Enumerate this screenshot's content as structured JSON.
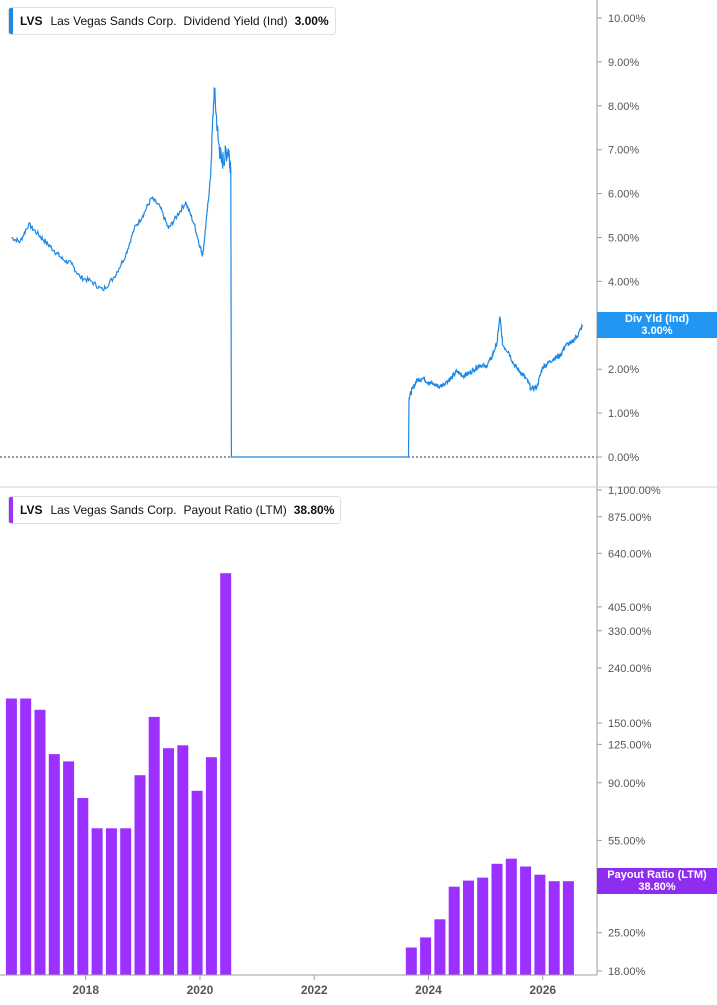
{
  "colors": {
    "yield_line": "#1e88e5",
    "payout_bar": "#9b30ff",
    "badge_yield": "#2196f3",
    "badge_payout": "#8e2cf0",
    "axis": "#9e9e9e"
  },
  "top_panel": {
    "ticker": "LVS",
    "company": "Las Vegas Sands Corp.",
    "metric": "Dividend Yield (Ind)",
    "value": "3.00%",
    "badge_line1": "Div Yld (Ind)",
    "badge_line2": "3.00%"
  },
  "bottom_panel": {
    "ticker": "LVS",
    "company": "Las Vegas Sands Corp.",
    "metric": "Payout Ratio (LTM)",
    "value": "38.80%",
    "badge_line1": "Payout Ratio (LTM)",
    "badge_line2": "38.80%"
  },
  "chart_data": [
    {
      "type": "line",
      "title": "LVS Las Vegas Sands Corp. Dividend Yield (Ind) 3.00%",
      "series_name": "Dividend Yield (Ind)",
      "unit": "%",
      "y_ticks": [
        "10.00%",
        "9.00%",
        "8.00%",
        "7.00%",
        "6.00%",
        "5.00%",
        "4.00%",
        "3.00%",
        "2.00%",
        "1.00%",
        "0.00%"
      ],
      "y_tick_values": [
        10,
        9,
        8,
        7,
        6,
        5,
        4,
        3,
        2,
        1,
        0
      ],
      "ylim": [
        0,
        10
      ],
      "zero_line": "dotted",
      "x": [
        2016.7,
        2016.85,
        2017.0,
        2017.15,
        2017.3,
        2017.45,
        2017.6,
        2017.75,
        2017.9,
        2018.1,
        2018.3,
        2018.5,
        2018.7,
        2018.85,
        2019.0,
        2019.15,
        2019.3,
        2019.45,
        2019.6,
        2019.75,
        2019.9,
        2020.0,
        2020.05,
        2020.12,
        2020.18,
        2020.25,
        2020.32,
        2020.38,
        2020.45,
        2020.5,
        2020.54,
        2020.55,
        2020.6,
        2021.0,
        2021.5,
        2022.0,
        2022.5,
        2023.0,
        2023.5,
        2023.65,
        2023.66,
        2023.72,
        2023.8,
        2023.9,
        2024.0,
        2024.1,
        2024.2,
        2024.3,
        2024.4,
        2024.5,
        2024.6,
        2024.7,
        2024.8,
        2024.9,
        2025.0,
        2025.1,
        2025.2,
        2025.25,
        2025.3,
        2025.4,
        2025.5,
        2025.6,
        2025.7,
        2025.8,
        2025.9,
        2026.0,
        2026.1,
        2026.2,
        2026.3,
        2026.4,
        2026.5,
        2026.6,
        2026.7
      ],
      "y": [
        5.0,
        4.9,
        5.3,
        5.1,
        4.9,
        4.7,
        4.5,
        4.4,
        4.1,
        4.0,
        3.8,
        4.1,
        4.6,
        5.2,
        5.5,
        5.9,
        5.7,
        5.2,
        5.5,
        5.8,
        5.3,
        4.8,
        4.6,
        5.5,
        6.3,
        8.4,
        7.2,
        6.7,
        6.9,
        7.0,
        6.6,
        0.0,
        0.0,
        0.0,
        0.0,
        0.0,
        0.0,
        0.0,
        0.0,
        0.0,
        1.35,
        1.55,
        1.75,
        1.8,
        1.7,
        1.65,
        1.6,
        1.7,
        1.8,
        1.95,
        1.85,
        1.9,
        2.0,
        2.1,
        2.05,
        2.25,
        2.6,
        3.2,
        2.55,
        2.4,
        2.1,
        1.95,
        1.8,
        1.55,
        1.6,
        2.05,
        2.15,
        2.25,
        2.3,
        2.55,
        2.6,
        2.75,
        3.0
      ],
      "last_value": "3.00%"
    },
    {
      "type": "bar",
      "title": "LVS Las Vegas Sands Corp. Payout Ratio (LTM) 38.80%",
      "series_name": "Payout Ratio (LTM)",
      "unit": "%",
      "y_scale": "log",
      "y_ticks": [
        "1,100.00%",
        "875.00%",
        "640.00%",
        "405.00%",
        "330.00%",
        "240.00%",
        "150.00%",
        "125.00%",
        "90.00%",
        "55.00%",
        "38.80%",
        "25.00%",
        "18.00%"
      ],
      "y_tick_values": [
        1100,
        875,
        640,
        405,
        330,
        240,
        150,
        125,
        90,
        55,
        38.8,
        25,
        18
      ],
      "ylim": [
        18,
        1100
      ],
      "x": [
        2016.7,
        2016.95,
        2017.2,
        2017.45,
        2017.7,
        2017.95,
        2018.2,
        2018.45,
        2018.7,
        2018.95,
        2019.2,
        2019.45,
        2019.7,
        2019.95,
        2020.2,
        2020.45,
        2023.7,
        2023.95,
        2024.2,
        2024.45,
        2024.7,
        2024.95,
        2025.2,
        2025.45,
        2025.7,
        2025.95,
        2026.2,
        2026.45
      ],
      "values": [
        185,
        185,
        168,
        115,
        108,
        79,
        61,
        61,
        61,
        96,
        158,
        121,
        124,
        84,
        112,
        540,
        22,
        24,
        28,
        37,
        39,
        40,
        45,
        47,
        44,
        41,
        38.8,
        38.8
      ],
      "last_value": "38.80%"
    }
  ],
  "x_axis": {
    "tick_labels": [
      "2018",
      "2020",
      "2022",
      "2024",
      "2026"
    ],
    "tick_values": [
      2018,
      2020,
      2022,
      2024,
      2026
    ],
    "xlim": [
      2016.5,
      2026.95
    ]
  }
}
